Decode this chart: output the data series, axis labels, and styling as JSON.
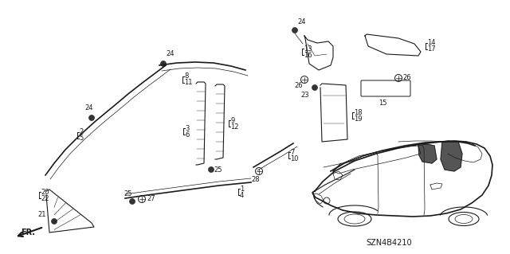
{
  "bg_color": "#ffffff",
  "line_color": "#1a1a1a",
  "diagram_code": "SZN4B4210",
  "figsize": [
    6.4,
    3.19
  ],
  "dpi": 100
}
